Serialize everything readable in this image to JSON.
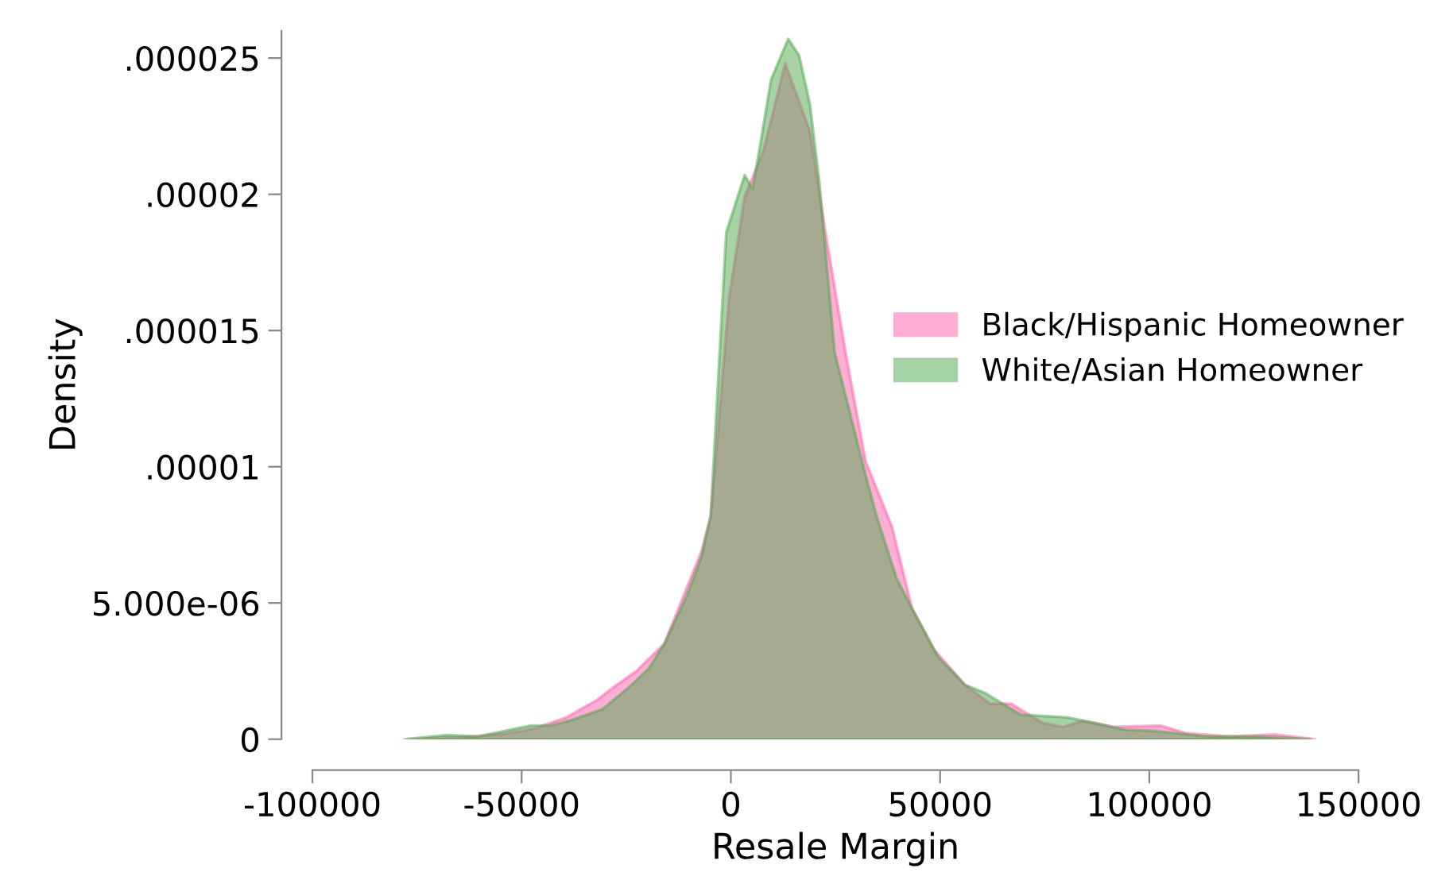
{
  "chart_data": {
    "type": "area",
    "xlabel": "Resale Margin",
    "ylabel": "Density",
    "xlim": [
      -100000,
      150000
    ],
    "xticks": [
      -100000,
      -50000,
      0,
      50000,
      100000,
      150000
    ],
    "ylim": [
      0,
      2.6e-05
    ],
    "yticks": [
      0,
      {
        "value": 5e-06,
        "label": "5.000e-06"
      },
      {
        "value": 1e-05,
        "label": ".00001"
      },
      {
        "value": 1.5e-05,
        "label": ".000015"
      },
      {
        "value": 2e-05,
        "label": ".00002"
      },
      {
        "value": 2.5e-05,
        "label": ".000025"
      }
    ],
    "grid": false,
    "legend": "right",
    "series": [
      {
        "name": "Black/Hispanic Homeowner",
        "color": "#ff5eaa",
        "x": [
          -77000,
          -61500,
          -54000,
          -46700,
          -39300,
          -31900,
          -28100,
          -22600,
          -15900,
          -7000,
          -4800,
          -400,
          3300,
          7800,
          13000,
          18900,
          22600,
          27400,
          32200,
          38500,
          43300,
          48500,
          55900,
          61900,
          67000,
          74400,
          79300,
          84100,
          91500,
          102600,
          108900,
          118900,
          130000,
          139600
        ],
        "values": [
          0,
          1e-07,
          2e-07,
          4e-07,
          8e-07,
          1.45e-06,
          1.9e-06,
          2.5e-06,
          3.5e-06,
          6.9e-06,
          8.2e-06,
          1.62e-05,
          1.99e-05,
          2.16e-05,
          2.48e-05,
          2.23e-05,
          1.86e-05,
          1.42e-05,
          1.02e-05,
          7.8e-06,
          4.8e-06,
          3.3e-06,
          2e-06,
          1.3e-06,
          1.3e-06,
          6e-07,
          4.5e-07,
          6.7e-07,
          4.5e-07,
          5e-07,
          2.2e-07,
          1e-07,
          1.7e-07,
          0
        ]
      },
      {
        "name": "White/Asian Homeowner",
        "color": "#4ea64e",
        "x": [
          -78000,
          -67800,
          -60400,
          -47800,
          -43000,
          -38200,
          -30700,
          -24400,
          -19600,
          -15900,
          -10700,
          -7000,
          -4800,
          -1100,
          3300,
          5200,
          7000,
          9600,
          13700,
          16300,
          18900,
          21100,
          24800,
          32200,
          34800,
          39600,
          43300,
          49600,
          55900,
          60700,
          69300,
          80400,
          86700,
          94100,
          101500,
          113700,
          126300,
          138500
        ],
        "values": [
          0,
          1.5e-07,
          1e-07,
          5e-07,
          5e-07,
          7e-07,
          1.1e-06,
          1.9e-06,
          2.6e-06,
          3.5e-06,
          5.2e-06,
          6.7e-06,
          8.2e-06,
          1.86e-05,
          2.07e-05,
          2.02e-05,
          2.18e-05,
          2.42e-05,
          2.57e-05,
          2.51e-05,
          2.33e-05,
          2.05e-05,
          1.42e-05,
          9.7e-06,
          8.2e-06,
          5.9e-06,
          4.8e-06,
          3e-06,
          2e-06,
          1.7e-06,
          9e-07,
          8e-07,
          6e-07,
          3.5e-07,
          3e-07,
          1e-07,
          1e-07,
          0
        ]
      }
    ]
  }
}
